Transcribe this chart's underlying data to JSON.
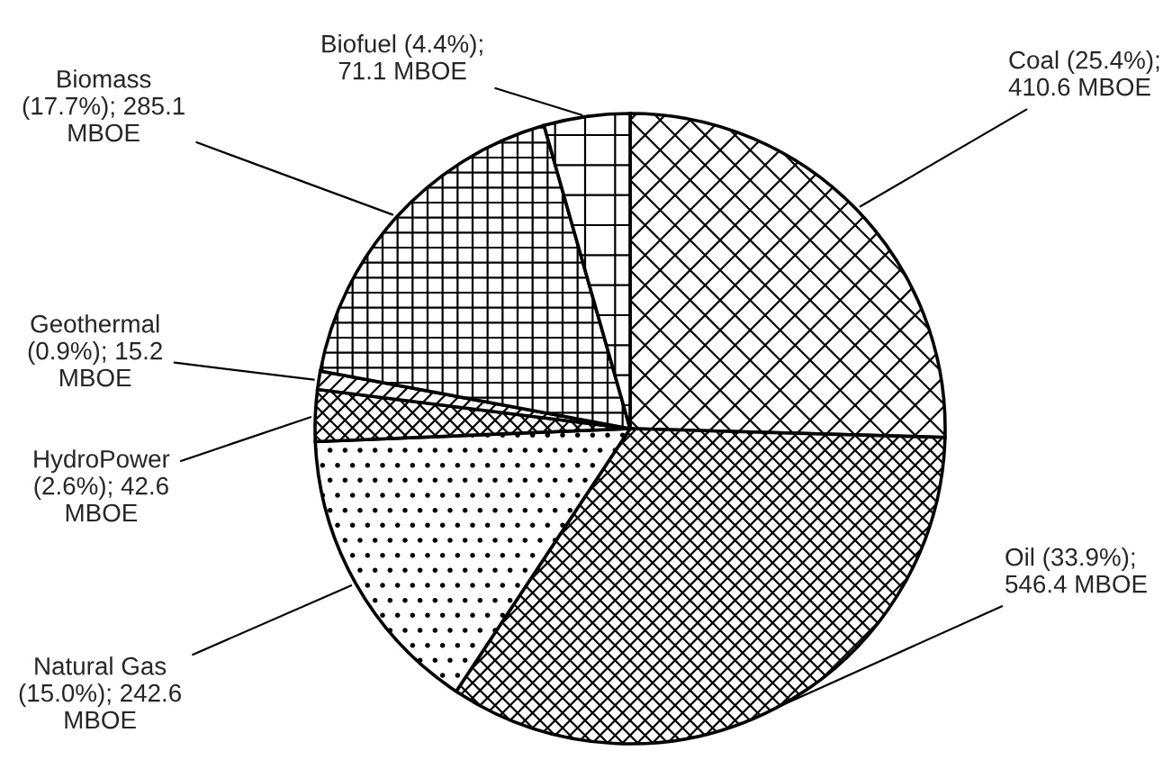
{
  "chart_data": {
    "type": "pie",
    "categories": [
      "Coal",
      "Oil",
      "Natural Gas",
      "HydroPower",
      "Geothermal",
      "Biomass",
      "Biofuel"
    ],
    "values": [
      410.6,
      546.4,
      242.6,
      42.6,
      15.2,
      285.1,
      71.1
    ],
    "colors": [
      "#000000",
      "#000000",
      "#000000",
      "#000000",
      "#000000",
      "#000000",
      "#000000"
    ],
    "value_labels": [
      " (25.4%);\n410.6 MBOE",
      " (33.9%);\n546.4 MBOE",
      "\n(15.0%); 242.6\nMBOE",
      "\n(2.6%); 42.6\nMBOE",
      "\n(0.9%); 15.2\nMBOE",
      "\n(17.7%); 285.1\nMBOE",
      " (4.4%);\n71.1 MBOE"
    ]
  }
}
